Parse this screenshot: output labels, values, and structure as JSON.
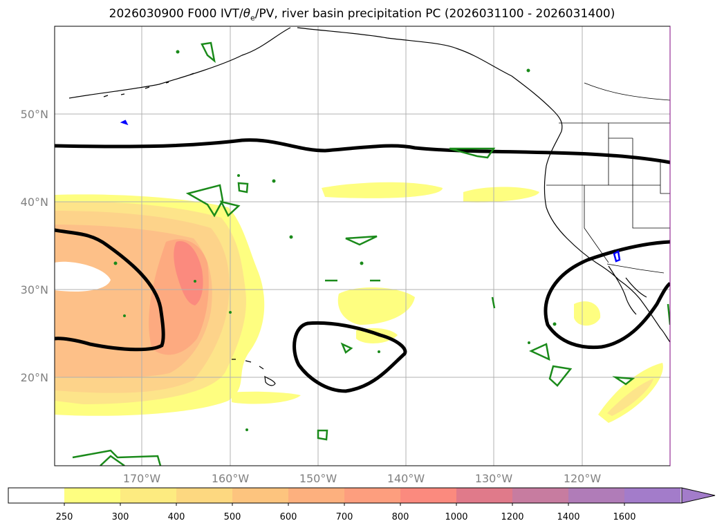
{
  "title": {
    "prefix": "2026030900 F000 IVT/",
    "theta_sym": "θ",
    "theta_sub": "e",
    "suffix": "/PV, river basin precipitation PC (2026031100 - 2026031400)"
  },
  "map": {
    "lat_labels": [
      "50°N",
      "40°N",
      "30°N",
      "20°N"
    ],
    "lon_labels": [
      "170°W",
      "160°W",
      "150°W",
      "140°W",
      "130°W",
      "120°W"
    ],
    "colors": {
      "theta_contour": "#000000",
      "pv_contour": "#1a8a1a",
      "pv_small": "#0000ff",
      "coastline": "#000000"
    }
  },
  "colorbar": {
    "labels": [
      "250",
      "300",
      "400",
      "500",
      "600",
      "700",
      "800",
      "1000",
      "1200",
      "1400",
      "1600"
    ],
    "colors": [
      "#ffffff",
      "#fefe80",
      "#fdeb80",
      "#fdd880",
      "#fdc47e",
      "#fdb07e",
      "#fd9e7e",
      "#fb8a7e",
      "#e07a8a",
      "#c77ca0",
      "#b07cb8",
      "#a37cca"
    ]
  }
}
